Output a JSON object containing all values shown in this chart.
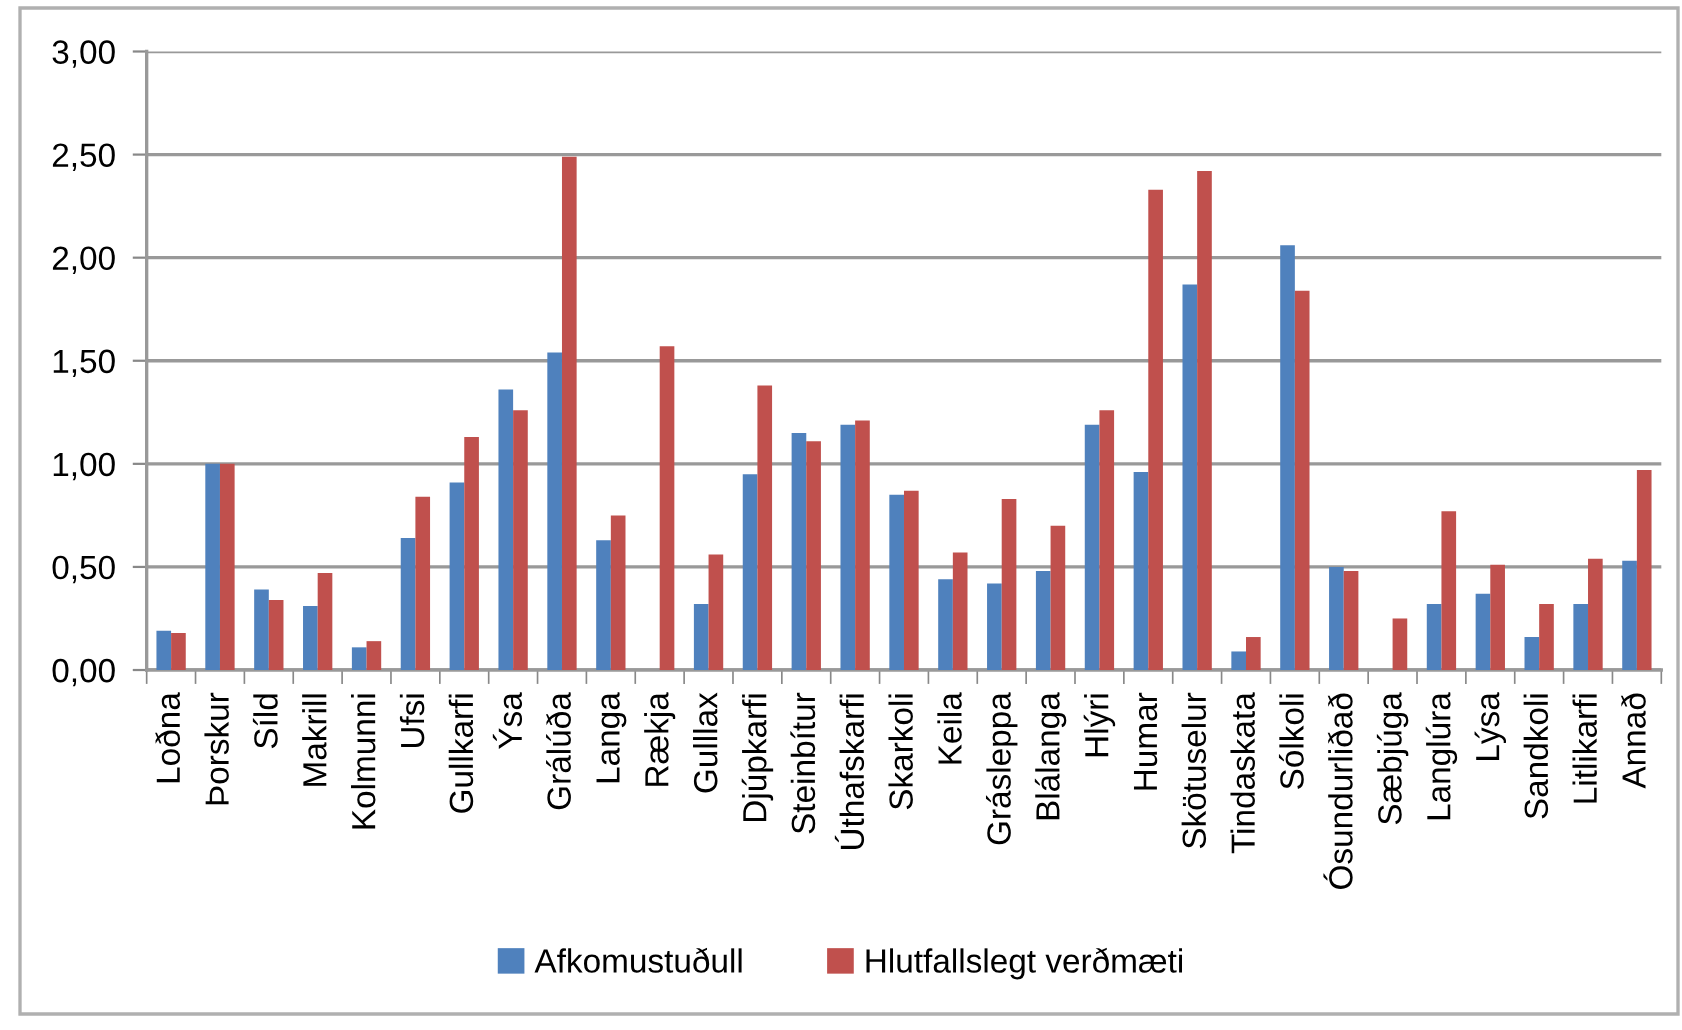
{
  "chart_data": {
    "type": "bar",
    "categories": [
      "Loðna",
      "Þorskur",
      "Síld",
      "Makrill",
      "Kolmunni",
      "Ufsi",
      "Gullkarfi",
      "Ýsa",
      "Grálúða",
      "Langa",
      "Rækja",
      "Gulllax",
      "Djúpkarfi",
      "Steinbítur",
      "Úthafskarfi",
      "Skarkoli",
      "Keila",
      "Grásleppa",
      "Blálanga",
      "Hlýri",
      "Humar",
      "Skötuselur",
      "Tindaskata",
      "Sólkoli",
      "Ósundurliðað",
      "Sæbjúga",
      "Langlúra",
      "Lýsa",
      "Sandkoli",
      "Litlikarfi",
      "Annað"
    ],
    "series": [
      {
        "name": "Afkomustuðull",
        "color": "#4f81bd",
        "values": [
          0.19,
          1.0,
          0.39,
          0.31,
          0.11,
          0.64,
          0.91,
          1.36,
          1.54,
          0.63,
          null,
          0.32,
          0.95,
          1.15,
          1.19,
          0.85,
          0.44,
          0.42,
          0.48,
          1.19,
          0.96,
          1.87,
          0.09,
          2.06,
          0.5,
          null,
          0.32,
          0.37,
          0.16,
          0.32,
          0.53
        ]
      },
      {
        "name": "Hlutfallslegt verðmæti",
        "color": "#c0504d",
        "values": [
          0.18,
          1.0,
          0.34,
          0.47,
          0.14,
          0.84,
          1.13,
          1.26,
          2.49,
          0.75,
          1.57,
          0.56,
          1.38,
          1.11,
          1.21,
          0.87,
          0.57,
          0.83,
          0.7,
          1.26,
          2.33,
          2.42,
          0.16,
          1.84,
          0.48,
          0.25,
          0.77,
          0.51,
          0.32,
          0.54,
          0.97
        ]
      }
    ],
    "ylim": [
      0,
      3
    ],
    "yticks": [
      {
        "value": 0,
        "label": "0,00"
      },
      {
        "value": 0.5,
        "label": "0,50"
      },
      {
        "value": 1,
        "label": "1,00"
      },
      {
        "value": 1.5,
        "label": "1,50"
      },
      {
        "value": 2,
        "label": "2,00"
      },
      {
        "value": 2.5,
        "label": "2,50"
      },
      {
        "value": 3,
        "label": "3,00"
      }
    ],
    "grid": "y",
    "legend": "bottom"
  }
}
